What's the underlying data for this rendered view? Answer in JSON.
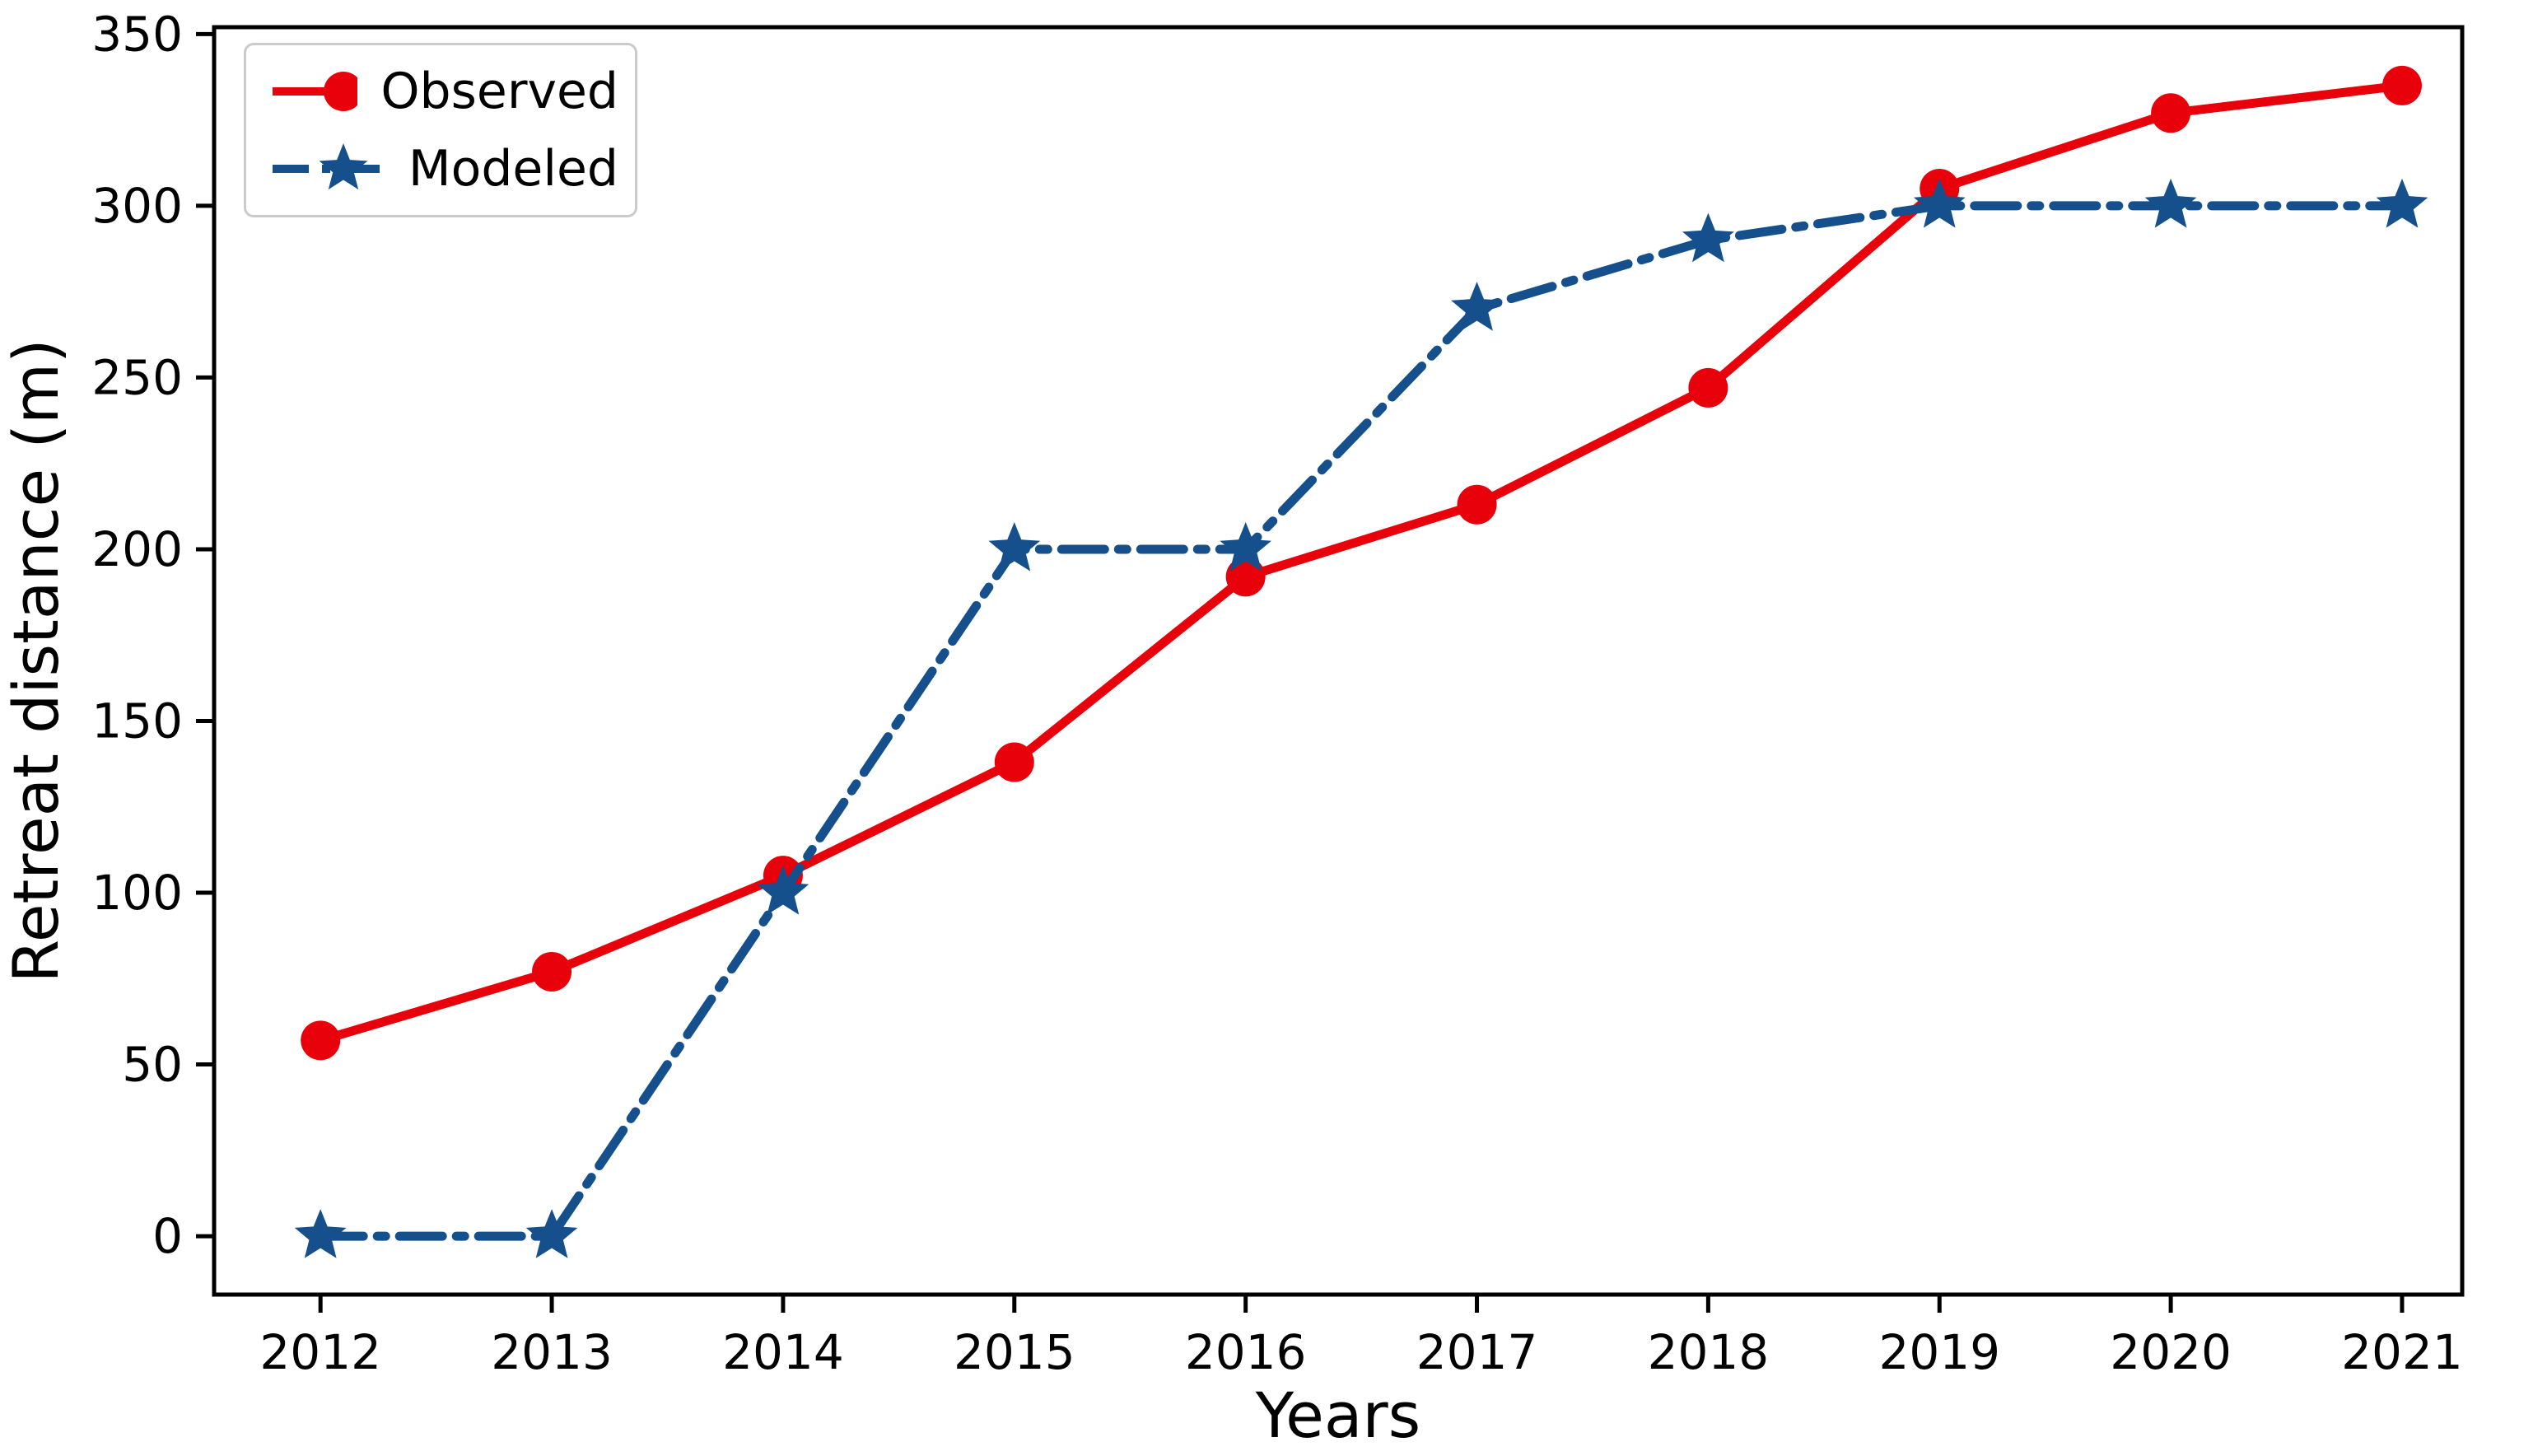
{
  "figure": {
    "background": "#ffffff",
    "axis_color": "#000000"
  },
  "axes": {
    "xlabel": "Years",
    "ylabel": "Retreat distance (m)"
  },
  "legend": {
    "position": "upper left",
    "items": [
      {
        "label": "Observed",
        "color": "#e8000b",
        "marker": "circle",
        "linestyle": "solid"
      },
      {
        "label": "Modeled",
        "color": "#15508d",
        "marker": "star",
        "linestyle": "dashdot"
      }
    ]
  },
  "chart_data": {
    "type": "line",
    "title": "",
    "xlabel": "Years",
    "ylabel": "Retreat distance (m)",
    "x": [
      2012,
      2013,
      2014,
      2015,
      2016,
      2017,
      2018,
      2019,
      2020,
      2021
    ],
    "series": [
      {
        "name": "Observed",
        "color": "#e8000b",
        "marker": "circle",
        "linestyle": "solid",
        "values": [
          57,
          77,
          105,
          138,
          192,
          213,
          247,
          305,
          327,
          335
        ]
      },
      {
        "name": "Modeled",
        "color": "#15508d",
        "marker": "star",
        "linestyle": "dashdot",
        "values": [
          0,
          0,
          100,
          200,
          200,
          270,
          290,
          300,
          300,
          300
        ]
      }
    ],
    "xticks": [
      2012,
      2013,
      2014,
      2015,
      2016,
      2017,
      2018,
      2019,
      2020,
      2021
    ],
    "yticks": [
      0,
      50,
      100,
      150,
      200,
      250,
      300,
      350
    ],
    "xlim": [
      2011.54,
      2021.26
    ],
    "ylim": [
      -17,
      352
    ],
    "grid": false,
    "legend_position": "upper left"
  }
}
